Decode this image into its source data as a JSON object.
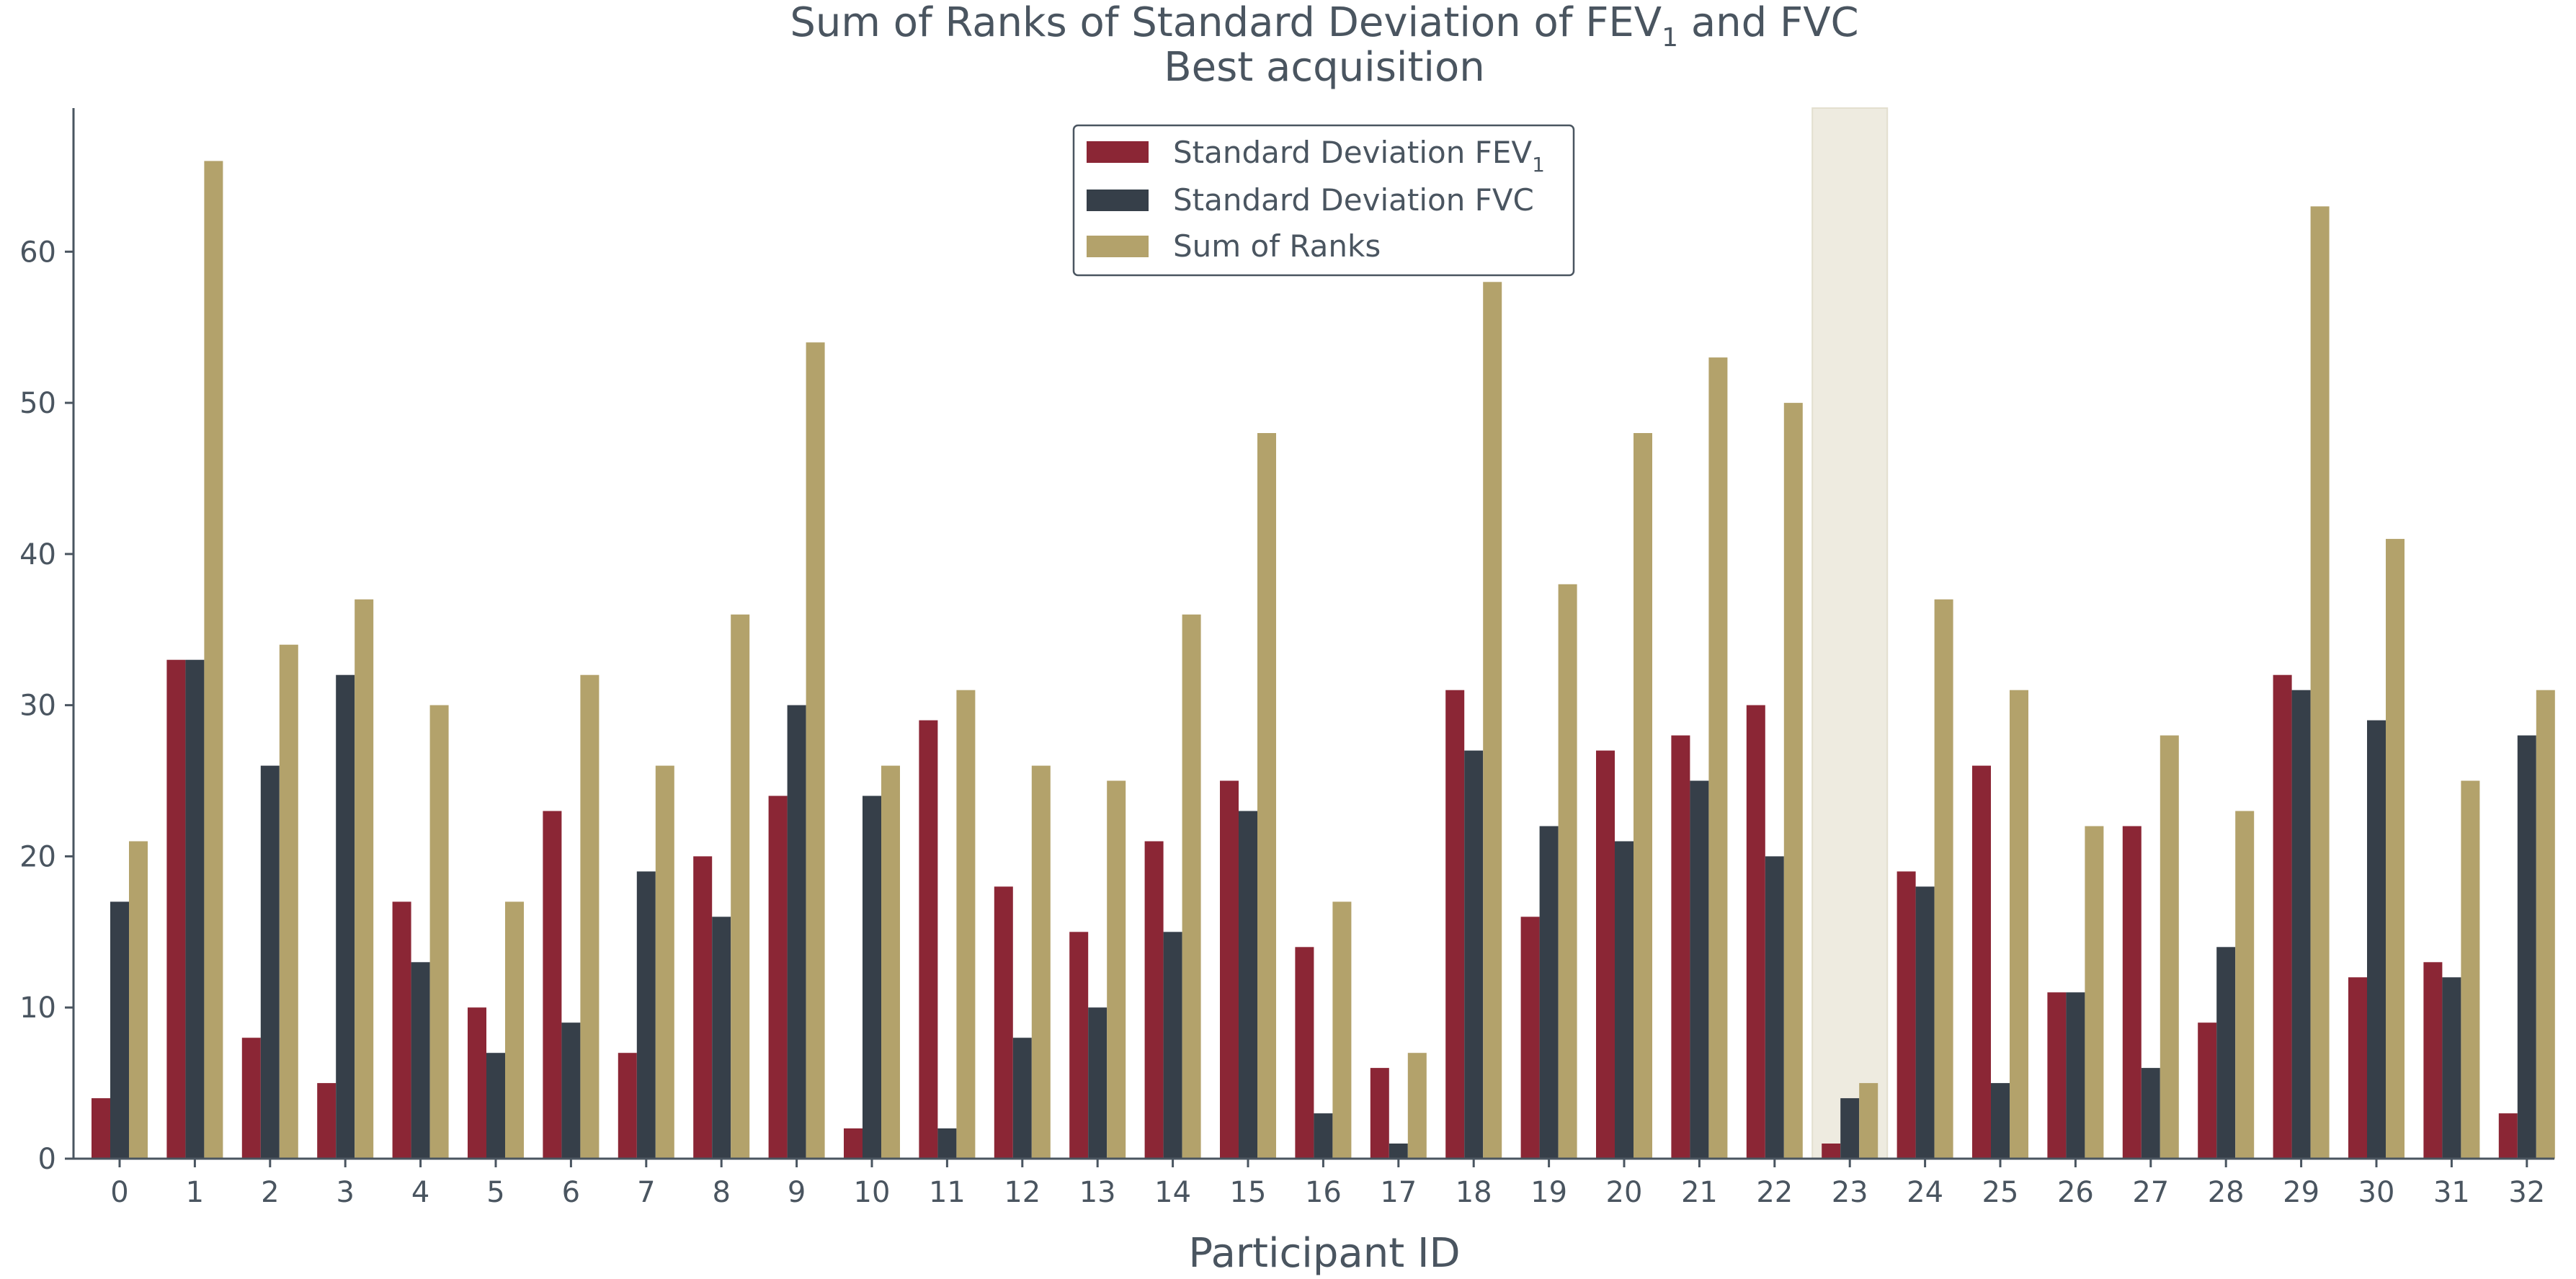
{
  "chart_data": {
    "type": "bar",
    "title_line1_prefix": "Sum of Ranks of Standard Deviation of FEV",
    "title_line1_sub": "1",
    "title_line1_suffix": " and FVC",
    "title_line2": "Best acquisition",
    "xlabel": "Participant ID",
    "ylabel": "",
    "ylim": [
      0,
      69.5
    ],
    "yticks": [
      0,
      10,
      20,
      30,
      40,
      50,
      60
    ],
    "categories": [
      "0",
      "1",
      "2",
      "3",
      "4",
      "5",
      "6",
      "7",
      "8",
      "9",
      "10",
      "11",
      "12",
      "13",
      "14",
      "15",
      "16",
      "17",
      "18",
      "19",
      "20",
      "21",
      "22",
      "23",
      "24",
      "25",
      "26",
      "27",
      "28",
      "29",
      "30",
      "31",
      "32"
    ],
    "highlight_category": "23",
    "highlight_color": "#eeebe0",
    "grid": false,
    "legend_position": "top-center",
    "series": [
      {
        "name": "Standard Deviation FEV",
        "name_sub": "1",
        "color": "#8b2635",
        "values": [
          4,
          33,
          8,
          5,
          17,
          10,
          23,
          7,
          20,
          24,
          2,
          29,
          18,
          15,
          21,
          25,
          14,
          6,
          31,
          16,
          27,
          28,
          30,
          1,
          19,
          26,
          11,
          22,
          9,
          32,
          12,
          13,
          3
        ]
      },
      {
        "name": "Standard Deviation FVC",
        "name_sub": "",
        "color": "#363f49",
        "values": [
          17,
          33,
          26,
          32,
          13,
          7,
          9,
          19,
          16,
          30,
          24,
          2,
          8,
          10,
          15,
          23,
          3,
          1,
          27,
          22,
          21,
          25,
          20,
          4,
          18,
          5,
          11,
          6,
          14,
          31,
          29,
          12,
          28
        ]
      },
      {
        "name": "Sum of Ranks",
        "name_sub": "",
        "color": "#b3a26b",
        "values": [
          21,
          66,
          34,
          37,
          30,
          17,
          32,
          26,
          36,
          54,
          26,
          31,
          26,
          25,
          36,
          48,
          17,
          7,
          58,
          38,
          48,
          53,
          50,
          5,
          37,
          31,
          22,
          28,
          23,
          63,
          41,
          25,
          31
        ]
      }
    ]
  }
}
